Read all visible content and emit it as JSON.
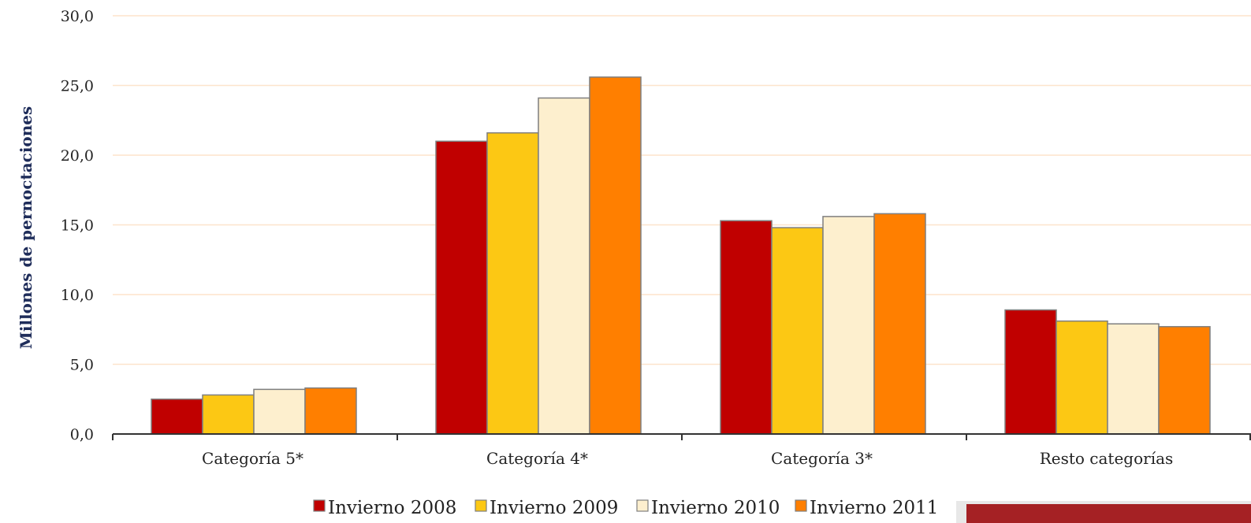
{
  "chart_data": {
    "type": "bar",
    "ylabel": "Millones de pernoctaciones",
    "xlabel": "",
    "ylim": [
      0,
      30
    ],
    "yticks": [
      0,
      5,
      10,
      15,
      20,
      25,
      30
    ],
    "ytick_labels": [
      "0,0",
      "5,0",
      "10,0",
      "15,0",
      "20,0",
      "25,0",
      "30,0"
    ],
    "categories": [
      "Categoría 5*",
      "Categoría 4*",
      "Categoría 3*",
      "Resto categorías"
    ],
    "series": [
      {
        "name": "Invierno 2008",
        "color": "#c00000",
        "values": [
          2.5,
          21.0,
          15.3,
          8.9
        ]
      },
      {
        "name": "Invierno 2009",
        "color": "#fcc814",
        "values": [
          2.8,
          21.6,
          14.8,
          8.1
        ]
      },
      {
        "name": "Invierno 2010",
        "color": "#fdefce",
        "values": [
          3.2,
          24.1,
          15.6,
          7.9
        ]
      },
      {
        "name": "Invierno 2011",
        "color": "#ff7f00",
        "values": [
          3.3,
          25.6,
          15.8,
          7.7
        ]
      }
    ],
    "grid": true,
    "legend_position": "bottom",
    "colors": {
      "gridline": "#fde4cc",
      "axis": "#333333",
      "bar_border": "#7f7f7f",
      "ylabel": "#1f2d5a",
      "corner_band": "#a52124"
    }
  }
}
